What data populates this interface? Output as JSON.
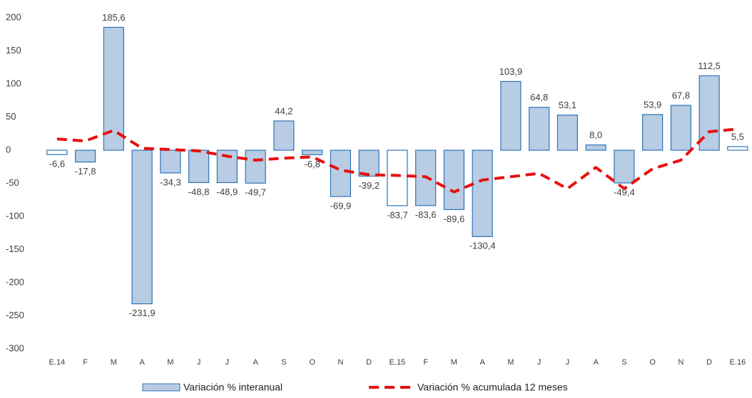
{
  "chart_data": {
    "type": "bar-line",
    "categories": [
      "E.14",
      "F",
      "M",
      "A",
      "M",
      "J",
      "J",
      "A",
      "S",
      "O",
      "N",
      "D",
      "E.15",
      "F",
      "M",
      "A",
      "M",
      "J",
      "J",
      "A",
      "S",
      "O",
      "N",
      "D",
      "E.16"
    ],
    "series": [
      {
        "name": "Variación % interanual",
        "type": "bar",
        "color": "#b8cce4",
        "edge_color": "#2e75b6",
        "colors": [
          "#ffffff",
          "#b8cce4",
          "#b8cce4",
          "#b8cce4",
          "#b8cce4",
          "#b8cce4",
          "#b8cce4",
          "#b8cce4",
          "#b8cce4",
          "#b8cce4",
          "#b8cce4",
          "#b8cce4",
          "#ffffff",
          "#b8cce4",
          "#b8cce4",
          "#b8cce4",
          "#b8cce4",
          "#b8cce4",
          "#b8cce4",
          "#b8cce4",
          "#b8cce4",
          "#b8cce4",
          "#b8cce4",
          "#b8cce4",
          "#ffffff"
        ],
        "values": [
          -6.6,
          -17.8,
          185.6,
          -231.9,
          -34.3,
          -48.8,
          -48.9,
          -49.7,
          44.2,
          -6.8,
          -69.9,
          -39.2,
          -83.7,
          -83.6,
          -89.6,
          -130.4,
          103.9,
          64.8,
          53.1,
          8.0,
          -49.4,
          53.9,
          67.8,
          112.5,
          5.5
        ],
        "value_labels": [
          "-6,6",
          "-17,8",
          "185,6",
          "-231,9",
          "-34,3",
          "-48,8",
          "-48,9",
          "-49,7",
          "44,2",
          "-6,8",
          "-69,9",
          "-39,2",
          "-83,7",
          "-83,6",
          "-89,6",
          "-130,4",
          "103,9",
          "64,8",
          "53,1",
          "8,0",
          "-49,4",
          "53,9",
          "67,8",
          "112,5",
          "5,5"
        ]
      },
      {
        "name": "Variación % acumulada 12 meses",
        "type": "line",
        "color": "#e8100f",
        "values": [
          17,
          14,
          30,
          3,
          1,
          -1,
          -9,
          -15,
          -12,
          -10,
          -30,
          -37,
          -38,
          -40,
          -63,
          -45,
          -40,
          -35,
          -58,
          -26,
          -58,
          -28,
          -15,
          28,
          32
        ]
      }
    ],
    "ylim": [
      -300,
      200
    ],
    "yticks": [
      -300,
      -250,
      -200,
      -150,
      -100,
      -50,
      0,
      50,
      100,
      150,
      200
    ],
    "legend": "bottom"
  }
}
